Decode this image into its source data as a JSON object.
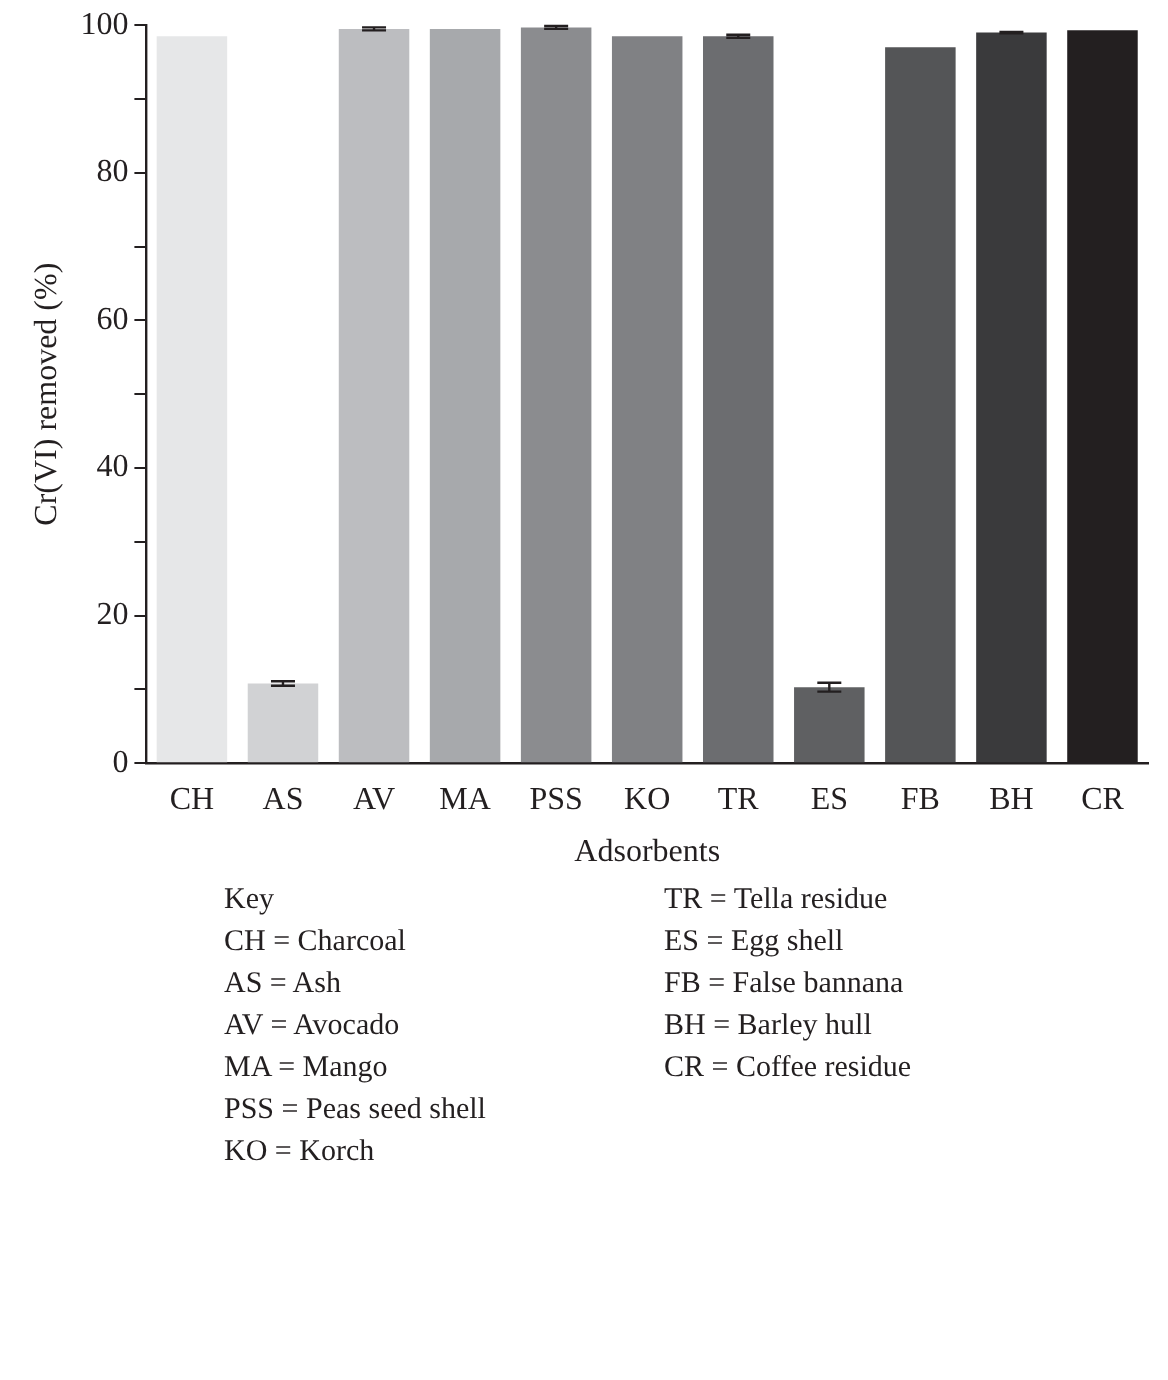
{
  "chart_data": {
    "type": "bar",
    "xlabel": "Adsorbents",
    "ylabel": "Cr(VI) removed (%)",
    "categories": [
      "CH",
      "AS",
      "AV",
      "MA",
      "PSS",
      "KO",
      "TR",
      "ES",
      "FB",
      "BH",
      "CR"
    ],
    "values": [
      98.5,
      10.8,
      99.5,
      99.5,
      99.7,
      98.5,
      98.5,
      10.3,
      97,
      99,
      99.3
    ],
    "errors": [
      null,
      0.3,
      0.2,
      null,
      0.2,
      null,
      0.2,
      0.6,
      null,
      0.1,
      null
    ],
    "colors": [
      "#e6e7e8",
      "#d1d2d4",
      "#bcbdc0",
      "#a7a9ac",
      "#8b8c8f",
      "#808184",
      "#6c6d70",
      "#5f6062",
      "#545557",
      "#3a3a3c",
      "#231f20"
    ],
    "ylim": [
      0,
      100
    ],
    "yticks": [
      0,
      {
        "value": 10,
        "label": null
      },
      20,
      {
        "value": 30,
        "label": null
      },
      40,
      {
        "value": 50,
        "label": null
      },
      60,
      {
        "value": 70,
        "label": null
      },
      80,
      {
        "value": 90,
        "label": null
      },
      100
    ],
    "grid": false,
    "legend": false,
    "annotations": [
      "Key",
      "CH = Charcoal",
      "AS = Ash",
      "AV = Avocado",
      "MA = Mango",
      "PSS = Peas seed shell",
      "KO = Korch",
      "TR = Tella residue",
      "ES = Egg shell",
      "FB = False bannana",
      "BH = Barley hull",
      "CR = Coffee residue"
    ]
  }
}
